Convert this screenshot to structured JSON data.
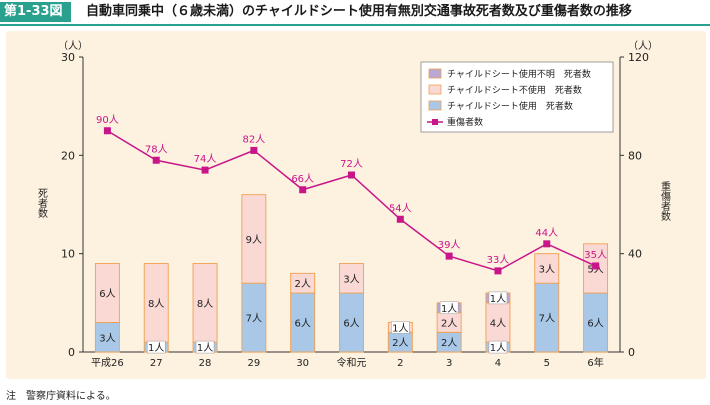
{
  "figure": {
    "number": "第1-33図",
    "title": "自動車同乗中（６歳未満）のチャイルドシート使用有無別交通事故死者数及び重傷者数の推移",
    "note": "注　警察庁資料による。"
  },
  "colors": {
    "header": "#2aa08e",
    "panel_bg": "#fdf1df",
    "unknown_fill": "#b9a8d6",
    "notused_fill": "#fad9d4",
    "used_fill": "#a9c8e8",
    "bar_stroke": "#f0a050",
    "line": "#c8168a"
  },
  "chart_data": {
    "type": "bar",
    "categories": [
      "平成26",
      "27",
      "28",
      "29",
      "30",
      "令和元",
      "2",
      "3",
      "4",
      "5",
      "6年"
    ],
    "left_axis": {
      "label": "死者数",
      "unit": "（人）",
      "ylim": [
        0,
        30
      ],
      "ticks": [
        0,
        10,
        20,
        30
      ]
    },
    "right_axis": {
      "label": "重傷者数",
      "unit": "（人）",
      "ylim": [
        0,
        120
      ],
      "ticks": [
        0,
        40,
        80,
        120
      ]
    },
    "grid": false,
    "legend_position": "top-right",
    "series": [
      {
        "name": "チャイルドシート使用　死者数",
        "kind": "bar",
        "axis": "left",
        "values": [
          3,
          1,
          1,
          7,
          6,
          6,
          2,
          2,
          1,
          7,
          6
        ],
        "labels": [
          "3人",
          "1人",
          "1人",
          "7人",
          "6人",
          "6人",
          "2人",
          "2人",
          "1人",
          "7人",
          "6人"
        ]
      },
      {
        "name": "チャイルドシート不使用　死者数",
        "kind": "bar",
        "axis": "left",
        "values": [
          6,
          8,
          8,
          9,
          2,
          3,
          1,
          2,
          4,
          3,
          5
        ],
        "labels": [
          "6人",
          "8人",
          "8人",
          "9人",
          "2人",
          "3人",
          "1人",
          "2人",
          "4人",
          "3人",
          "5人"
        ]
      },
      {
        "name": "チャイルドシート使用不明　死者数",
        "kind": "bar",
        "axis": "left",
        "values": [
          0,
          0,
          0,
          0,
          0,
          0,
          0,
          1,
          1,
          0,
          0
        ],
        "labels": [
          "",
          "",
          "",
          "",
          "",
          "",
          "",
          "1人",
          "1人",
          "",
          ""
        ]
      },
      {
        "name": "重傷者数",
        "kind": "line",
        "axis": "right",
        "values": [
          90,
          78,
          74,
          82,
          66,
          72,
          54,
          39,
          33,
          44,
          35
        ],
        "labels": [
          "90人",
          "78人",
          "74人",
          "82人",
          "66人",
          "72人",
          "54人",
          "39人",
          "33人",
          "44人",
          "35人"
        ]
      }
    ]
  }
}
